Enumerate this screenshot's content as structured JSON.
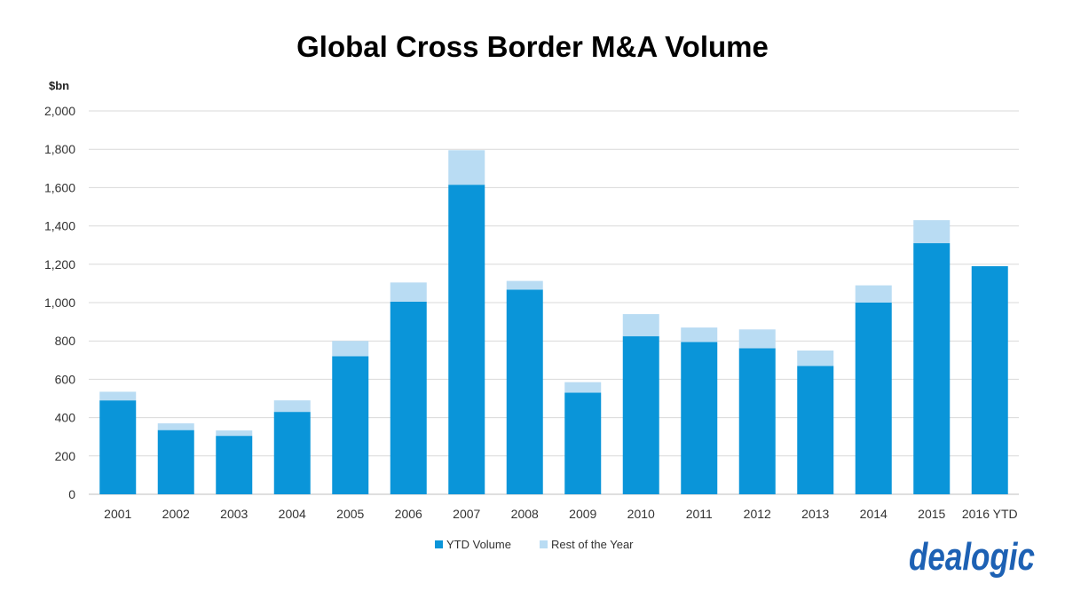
{
  "chart_data": {
    "type": "bar",
    "stacked": true,
    "title": "Global Cross Border M&A Volume",
    "unit_label": "$bn",
    "xlabel": "",
    "ylabel": "",
    "ylim": [
      0,
      2000
    ],
    "y_ticks": [
      0,
      200,
      400,
      600,
      800,
      1000,
      1200,
      1400,
      1600,
      1800,
      2000
    ],
    "y_tick_labels": [
      "0",
      "200",
      "400",
      "600",
      "800",
      "1,000",
      "1,200",
      "1,400",
      "1,600",
      "1,800",
      "2,000"
    ],
    "grid": true,
    "legend_position": "bottom",
    "categories": [
      "2001",
      "2002",
      "2003",
      "2004",
      "2005",
      "2006",
      "2007",
      "2008",
      "2009",
      "2010",
      "2011",
      "2012",
      "2013",
      "2014",
      "2015",
      "2016 YTD"
    ],
    "series": [
      {
        "name": "YTD Volume",
        "color": "#0a95d9",
        "values": [
          490,
          335,
          305,
          430,
          720,
          1005,
          1615,
          1068,
          530,
          825,
          795,
          762,
          670,
          1000,
          1310,
          1190
        ]
      },
      {
        "name": "Rest of the Year",
        "color": "#b9dcf3",
        "values": [
          45,
          35,
          28,
          60,
          80,
          100,
          180,
          45,
          55,
          115,
          75,
          98,
          80,
          90,
          120,
          0
        ]
      }
    ]
  },
  "brand": {
    "logo_text": "dealogic",
    "logo_color": "#1d61b4"
  }
}
